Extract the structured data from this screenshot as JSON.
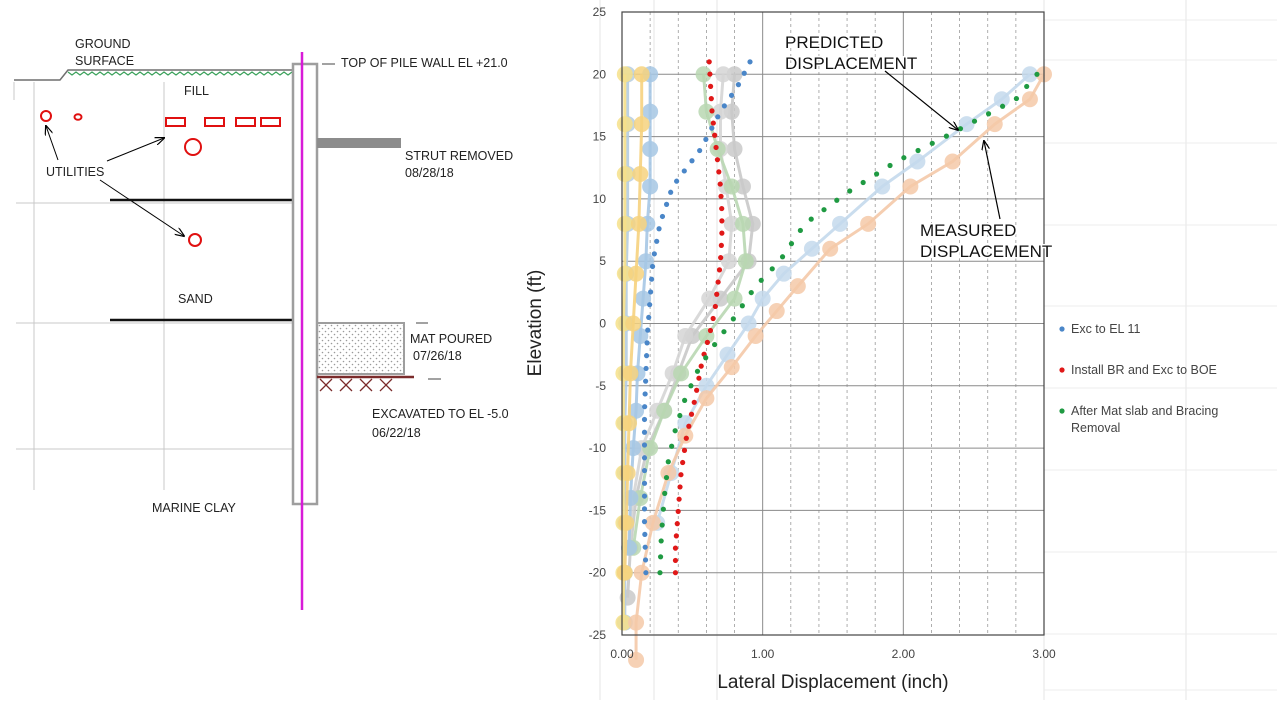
{
  "section": {
    "ground_surface": [
      "GROUND",
      "SURFACE"
    ],
    "fill": "FILL",
    "utilities": "UTILITIES",
    "sand": "SAND",
    "marine_clay": "MARINE CLAY",
    "top_of_wall": "TOP OF PILE WALL EL +21.0",
    "strut_removed": [
      "STRUT REMOVED",
      "08/28/18"
    ],
    "mat_poured": [
      "MAT POURED",
      "07/26/18"
    ],
    "excavated": [
      "EXCAVATED TO EL -5.0",
      "06/22/18"
    ],
    "colors": {
      "pile": "#d81bd8",
      "wall": "#9e9e9e",
      "utility": "#e01010",
      "ground": "#3aa05a",
      "strut": "#8c8c8c",
      "excavation": "#7b2b2b"
    }
  },
  "chart_data": {
    "type": "scatter",
    "xlabel": "Lateral Displacement (inch)",
    "ylabel": "Elevation (ft)",
    "xlim": [
      0,
      3
    ],
    "ylim": [
      -25,
      25
    ],
    "x_ticks": [
      "0.00",
      "1.00",
      "2.00",
      "3.00"
    ],
    "y_ticks": [
      "25",
      "20",
      "15",
      "10",
      "5",
      "0",
      "-5",
      "-10",
      "-15",
      "-20",
      "-25"
    ],
    "grid": true,
    "legend_position": "right",
    "annotations": [
      {
        "lines": [
          "PREDICTED",
          "DISPLACEMENT"
        ],
        "point_to": [
          2.4,
          15.5
        ]
      },
      {
        "lines": [
          "MEASURED",
          "DISPLACEMENT"
        ],
        "point_to": [
          2.58,
          14.5
        ]
      }
    ],
    "series": [
      {
        "name": "Exc to EL 11",
        "color": "#4a86c8",
        "points": [
          [
            0.91,
            21
          ],
          [
            0.82,
            19
          ],
          [
            0.7,
            17
          ],
          [
            0.56,
            14
          ],
          [
            0.36,
            11
          ],
          [
            0.27,
            8
          ],
          [
            0.22,
            5
          ],
          [
            0.2,
            2
          ],
          [
            0.18,
            -1
          ],
          [
            0.17,
            -4
          ],
          [
            0.16,
            -7
          ],
          [
            0.16,
            -10
          ],
          [
            0.16,
            -13
          ],
          [
            0.16,
            -16
          ],
          [
            0.17,
            -20
          ]
        ]
      },
      {
        "name": "Install BR and Exc to BOE",
        "color": "#e01818",
        "points": [
          [
            0.62,
            21
          ],
          [
            0.63,
            19
          ],
          [
            0.64,
            17
          ],
          [
            0.66,
            15
          ],
          [
            0.68,
            13
          ],
          [
            0.7,
            11
          ],
          [
            0.71,
            9
          ],
          [
            0.71,
            7
          ],
          [
            0.7,
            5
          ],
          [
            0.68,
            3
          ],
          [
            0.66,
            1
          ],
          [
            0.62,
            -1
          ],
          [
            0.57,
            -3
          ],
          [
            0.52,
            -6
          ],
          [
            0.46,
            -9
          ],
          [
            0.42,
            -12
          ],
          [
            0.4,
            -15
          ],
          [
            0.38,
            -18
          ],
          [
            0.38,
            -20
          ]
        ]
      },
      {
        "name": "After Mat slab and Bracing Removal",
        "color": "#1f9a42",
        "points": [
          [
            2.95,
            20
          ],
          [
            2.8,
            18
          ],
          [
            2.55,
            16.5
          ],
          [
            2.3,
            15
          ],
          [
            1.95,
            13
          ],
          [
            1.6,
            10.5
          ],
          [
            1.3,
            8
          ],
          [
            1.12,
            5
          ],
          [
            0.95,
            3
          ],
          [
            0.8,
            0.5
          ],
          [
            0.67,
            -1.5
          ],
          [
            0.55,
            -3.5
          ],
          [
            0.45,
            -6
          ],
          [
            0.38,
            -8.5
          ],
          [
            0.33,
            -11
          ],
          [
            0.3,
            -14
          ],
          [
            0.28,
            -17
          ],
          [
            0.27,
            -20
          ]
        ]
      }
    ],
    "other_measured": [
      {
        "color": "#c9c9c9",
        "points": [
          [
            0.8,
            20
          ],
          [
            0.78,
            17
          ],
          [
            0.8,
            14
          ],
          [
            0.86,
            11
          ],
          [
            0.93,
            8
          ],
          [
            0.9,
            5
          ],
          [
            0.7,
            2
          ],
          [
            0.5,
            -1
          ],
          [
            0.4,
            -4
          ],
          [
            0.3,
            -7
          ],
          [
            0.18,
            -10
          ],
          [
            0.1,
            -14
          ],
          [
            0.06,
            -18
          ],
          [
            0.04,
            -22
          ]
        ]
      },
      {
        "color": "#d5d5d5",
        "points": [
          [
            0.72,
            20
          ],
          [
            0.7,
            17
          ],
          [
            0.7,
            14
          ],
          [
            0.74,
            11
          ],
          [
            0.78,
            8
          ],
          [
            0.76,
            5
          ],
          [
            0.62,
            2
          ],
          [
            0.45,
            -1
          ],
          [
            0.36,
            -4
          ],
          [
            0.25,
            -7
          ],
          [
            0.14,
            -10
          ],
          [
            0.08,
            -14
          ],
          [
            0.05,
            -18
          ]
        ]
      },
      {
        "color": "#b9d7b2",
        "points": [
          [
            0.58,
            20
          ],
          [
            0.6,
            17
          ],
          [
            0.68,
            14
          ],
          [
            0.78,
            11
          ],
          [
            0.86,
            8
          ],
          [
            0.88,
            5
          ],
          [
            0.8,
            2
          ],
          [
            0.6,
            -1
          ],
          [
            0.42,
            -4
          ],
          [
            0.3,
            -7
          ],
          [
            0.2,
            -10
          ],
          [
            0.13,
            -14
          ],
          [
            0.08,
            -18
          ]
        ]
      },
      {
        "color": "#a6c7e4",
        "points": [
          [
            0.2,
            20
          ],
          [
            0.2,
            17
          ],
          [
            0.2,
            14
          ],
          [
            0.2,
            11
          ],
          [
            0.18,
            8
          ],
          [
            0.17,
            5
          ],
          [
            0.15,
            2
          ],
          [
            0.13,
            -1
          ],
          [
            0.11,
            -4
          ],
          [
            0.1,
            -7
          ],
          [
            0.08,
            -10
          ],
          [
            0.06,
            -14
          ],
          [
            0.05,
            -18
          ]
        ]
      },
      {
        "color": "#b5cce0",
        "points": [
          [
            0.04,
            20
          ],
          [
            0.04,
            16
          ],
          [
            0.04,
            12
          ],
          [
            0.04,
            8
          ],
          [
            0.03,
            4
          ],
          [
            0.03,
            0
          ],
          [
            0.03,
            -4
          ],
          [
            0.02,
            -8
          ],
          [
            0.02,
            -12
          ],
          [
            0.02,
            -16
          ],
          [
            0.02,
            -20
          ],
          [
            0.02,
            -24
          ]
        ]
      },
      {
        "color": "#f6e08a",
        "points": [
          [
            0.02,
            20
          ],
          [
            0.02,
            16
          ],
          [
            0.02,
            12
          ],
          [
            0.02,
            8
          ],
          [
            0.02,
            4
          ],
          [
            0.01,
            0
          ],
          [
            0.01,
            -4
          ],
          [
            0.01,
            -8
          ],
          [
            0.01,
            -12
          ],
          [
            0.01,
            -16
          ],
          [
            0.01,
            -20
          ],
          [
            0.01,
            -24
          ]
        ]
      },
      {
        "color": "#f6d27e",
        "points": [
          [
            0.14,
            20
          ],
          [
            0.14,
            16
          ],
          [
            0.13,
            12
          ],
          [
            0.12,
            8
          ],
          [
            0.1,
            4
          ],
          [
            0.08,
            0
          ],
          [
            0.06,
            -4
          ],
          [
            0.05,
            -8
          ],
          [
            0.04,
            -12
          ],
          [
            0.03,
            -16
          ],
          [
            0.02,
            -20
          ]
        ]
      },
      {
        "color": "#c4d9ec",
        "points": [
          [
            2.9,
            20
          ],
          [
            2.7,
            18
          ],
          [
            2.45,
            16
          ],
          [
            2.1,
            13
          ],
          [
            1.85,
            11
          ],
          [
            1.55,
            8
          ],
          [
            1.35,
            6
          ],
          [
            1.15,
            4
          ],
          [
            1.0,
            2
          ],
          [
            0.9,
            0
          ],
          [
            0.75,
            -2.5
          ],
          [
            0.6,
            -5
          ],
          [
            0.45,
            -8
          ],
          [
            0.35,
            -12
          ],
          [
            0.25,
            -16
          ]
        ]
      },
      {
        "color": "#f4c9a8",
        "points": [
          [
            3.0,
            20
          ],
          [
            2.9,
            18
          ],
          [
            2.65,
            16
          ],
          [
            2.35,
            13
          ],
          [
            2.05,
            11
          ],
          [
            1.75,
            8
          ],
          [
            1.48,
            6
          ],
          [
            1.25,
            3
          ],
          [
            1.1,
            1
          ],
          [
            0.95,
            -1
          ],
          [
            0.78,
            -3.5
          ],
          [
            0.6,
            -6
          ],
          [
            0.45,
            -9
          ],
          [
            0.33,
            -12
          ],
          [
            0.22,
            -16
          ],
          [
            0.14,
            -20
          ],
          [
            0.1,
            -24
          ],
          [
            0.1,
            -27
          ]
        ]
      }
    ],
    "legend": [
      "Exc to EL 11",
      "Install BR and Exc to BOE",
      "After Mat slab and Bracing Removal"
    ]
  }
}
